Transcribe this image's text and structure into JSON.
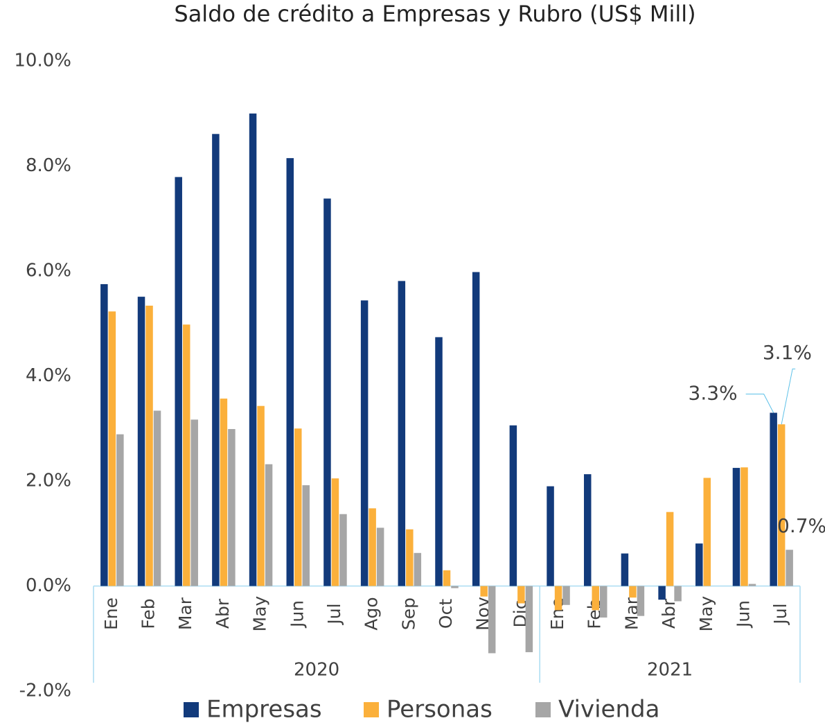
{
  "chart_data": {
    "type": "bar",
    "title": "Saldo de crédito a Empresas y Rubro (US$ Mill)",
    "categories": [
      "Ene",
      "Feb",
      "Mar",
      "Abr",
      "May",
      "Jun",
      "Jul",
      "Ago",
      "Sep",
      "Oct",
      "Nov",
      "Dic",
      "Ene",
      "Feb",
      "Mar",
      "Abr",
      "May",
      "Jun",
      "Jul"
    ],
    "category_groups": [
      {
        "label": "2020",
        "size": 12
      },
      {
        "label": "2021",
        "size": 7
      }
    ],
    "series": [
      {
        "name": "Empresas",
        "color": "#123a7b",
        "values": [
          5.75,
          5.51,
          7.79,
          8.61,
          9.0,
          8.15,
          7.38,
          5.44,
          5.81,
          4.74,
          5.98,
          3.06,
          1.9,
          2.13,
          0.62,
          -0.26,
          0.81,
          2.25,
          3.3
        ],
        "value_labels": [
          null,
          null,
          null,
          null,
          null,
          null,
          null,
          null,
          null,
          null,
          null,
          null,
          null,
          null,
          null,
          null,
          null,
          null,
          "3.3%"
        ]
      },
      {
        "name": "Personas",
        "color": "#fbb03b",
        "values": [
          5.23,
          5.34,
          4.98,
          3.57,
          3.43,
          3.0,
          2.05,
          1.48,
          1.08,
          0.3,
          -0.2,
          -0.33,
          -0.46,
          -0.46,
          -0.22,
          1.41,
          2.06,
          2.26,
          3.08
        ],
        "value_labels": [
          null,
          null,
          null,
          null,
          null,
          null,
          null,
          null,
          null,
          null,
          null,
          null,
          null,
          null,
          null,
          null,
          null,
          null,
          "3.1%"
        ]
      },
      {
        "name": "Vivienda",
        "color": "#a6a6a6",
        "values": [
          2.89,
          3.34,
          3.17,
          2.99,
          2.32,
          1.92,
          1.37,
          1.11,
          0.63,
          -0.04,
          -1.28,
          -1.26,
          -0.36,
          -0.6,
          -0.57,
          -0.29,
          0,
          0.04,
          0.69
        ],
        "value_labels": [
          null,
          null,
          null,
          null,
          null,
          null,
          null,
          null,
          null,
          null,
          null,
          null,
          null,
          null,
          null,
          null,
          null,
          null,
          "0.7%"
        ]
      }
    ],
    "ylim": [
      -2,
      10
    ],
    "yticks": [
      {
        "value": -2,
        "label": "-2.0%"
      },
      {
        "value": 0,
        "label": "0.0%"
      },
      {
        "value": 2,
        "label": "2.0%"
      },
      {
        "value": 4,
        "label": "4.0%"
      },
      {
        "value": 6,
        "label": "6.0%"
      },
      {
        "value": 8,
        "label": "8.0%"
      },
      {
        "value": 10,
        "label": "10.0%"
      }
    ],
    "grid": false,
    "legend": "bottom"
  }
}
